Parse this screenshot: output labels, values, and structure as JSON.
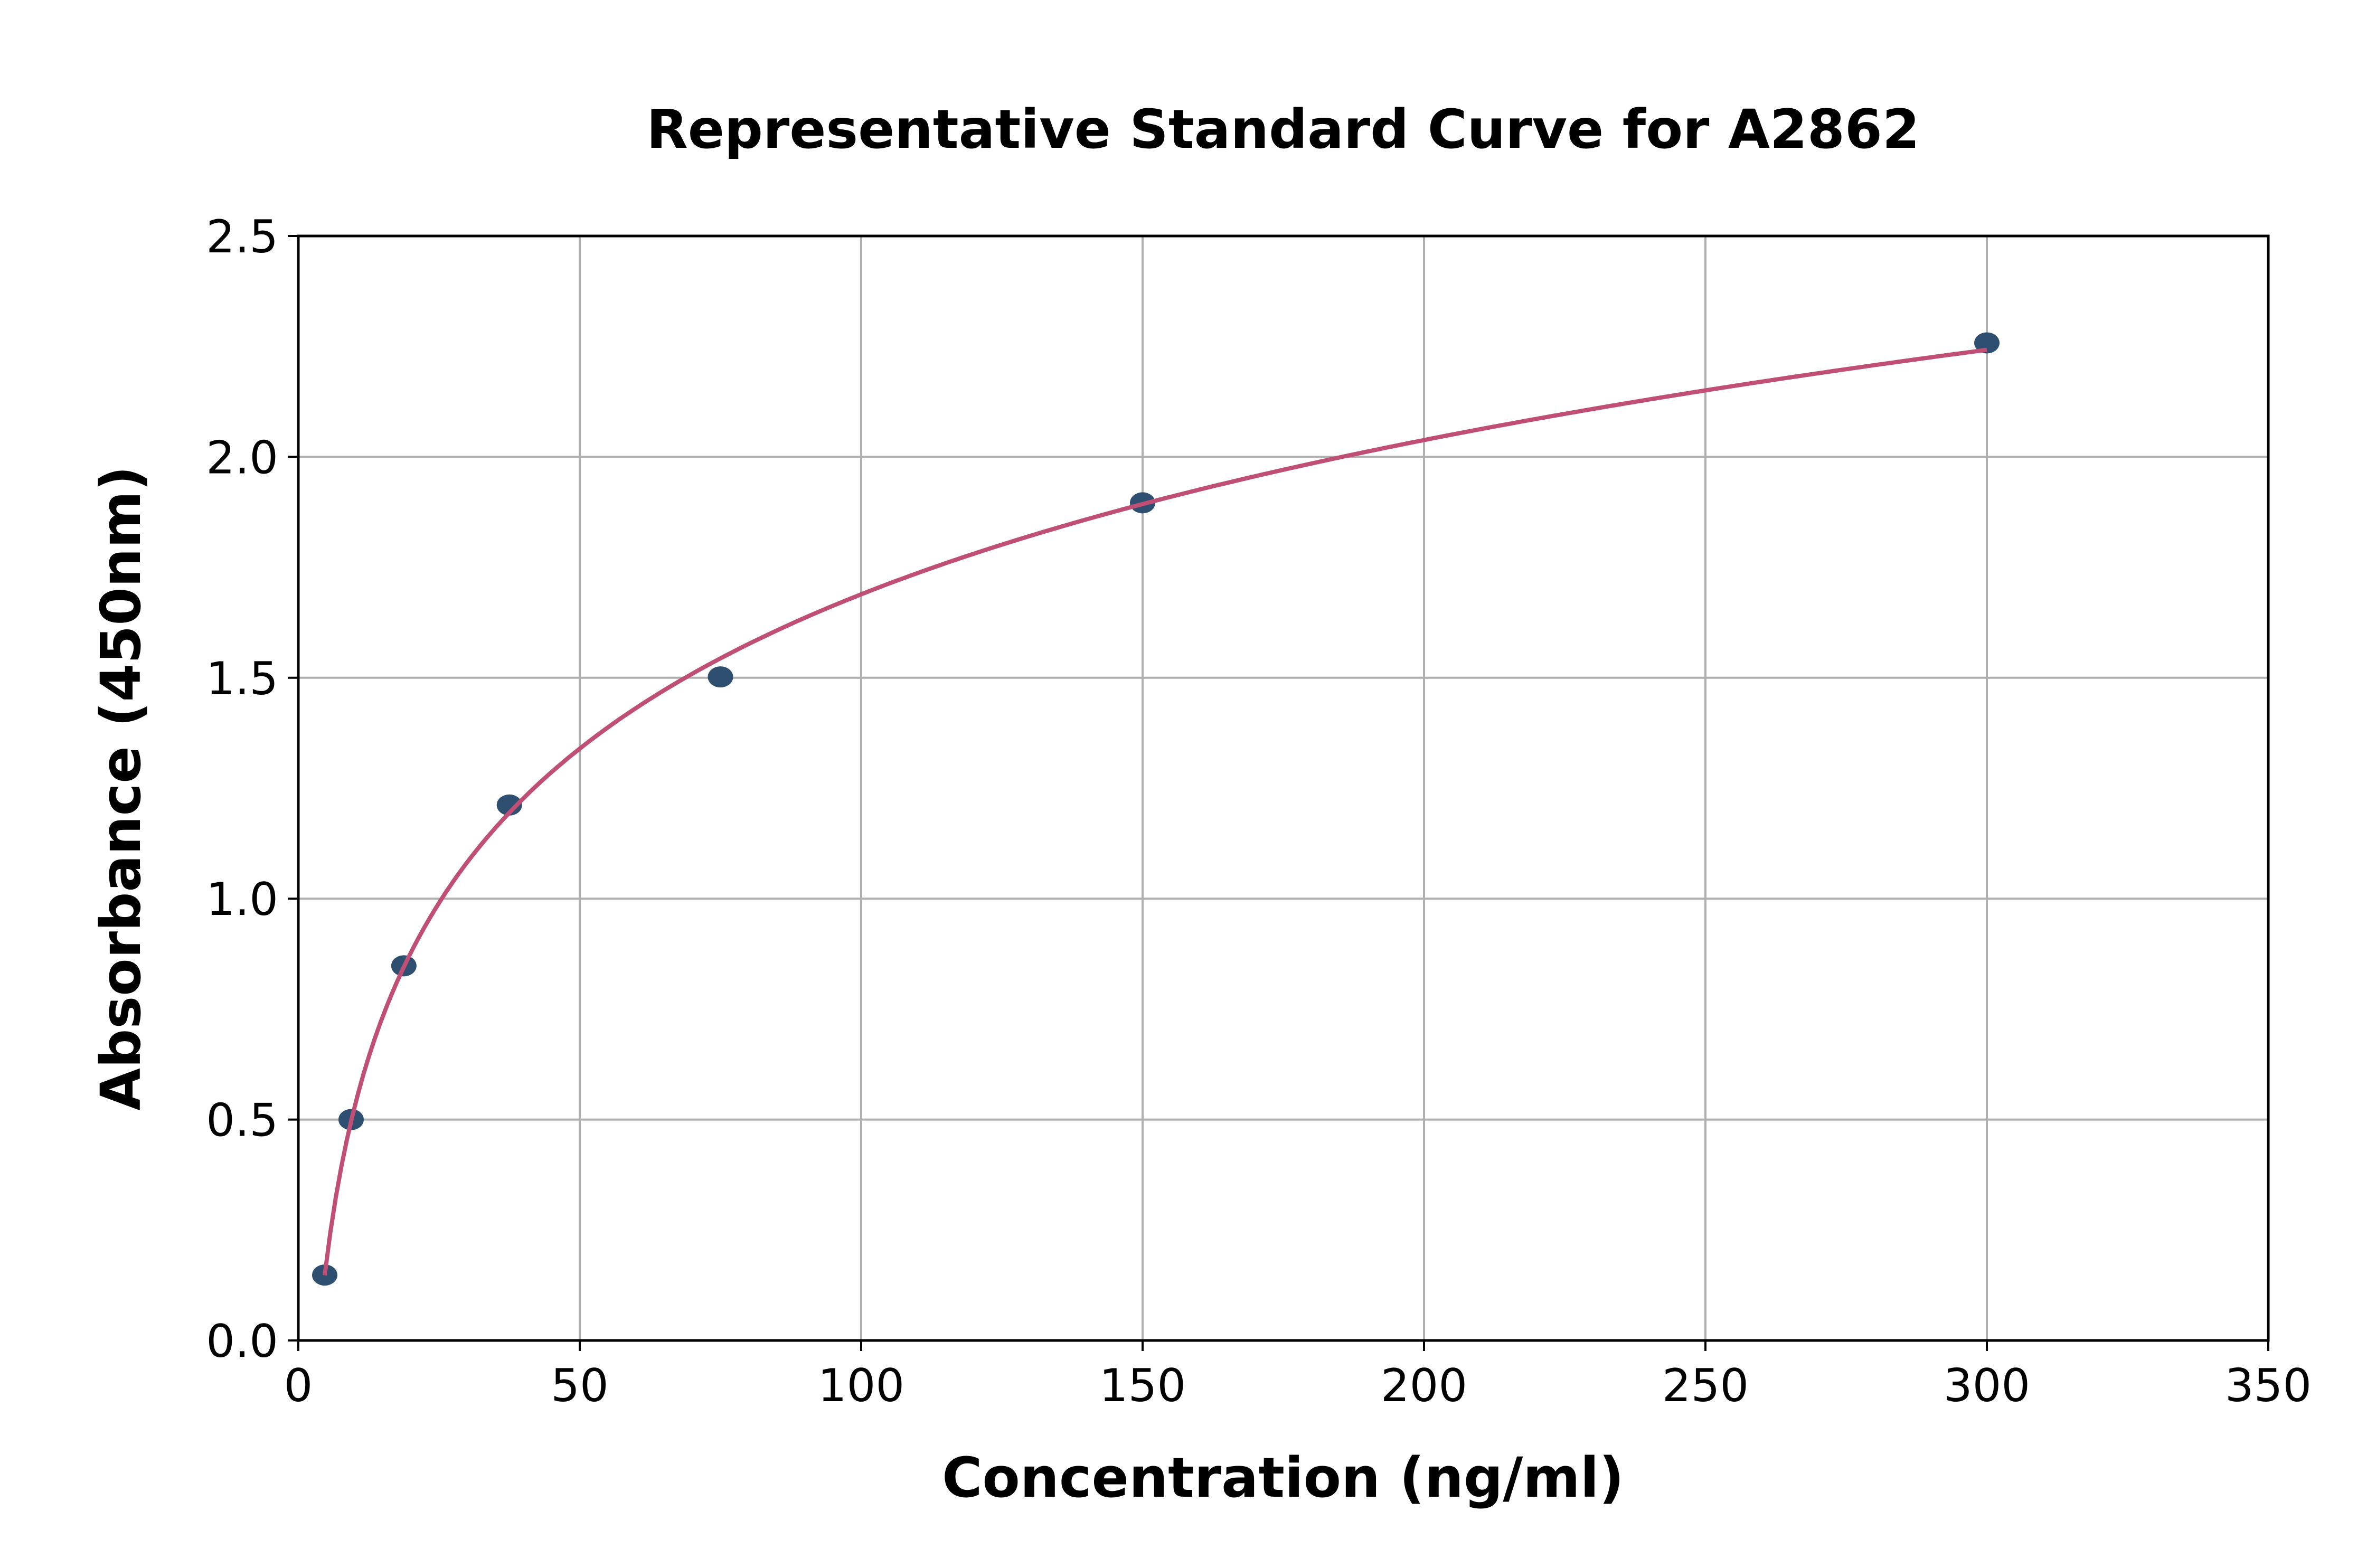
{
  "chart_data": {
    "type": "scatter",
    "title": "Representative Standard Curve for A2862",
    "xlabel": "Concentration (ng/ml)",
    "ylabel": "Absorbance (450nm)",
    "xlim": [
      0,
      350
    ],
    "ylim": [
      0,
      2.5
    ],
    "xticks": [
      "0",
      "50",
      "100",
      "150",
      "200",
      "250",
      "300",
      "350"
    ],
    "yticks": [
      "0.0",
      "0.5",
      "1.0",
      "1.5",
      "2.0",
      "2.5"
    ],
    "grid": true,
    "points": [
      {
        "x": 4.69,
        "y": 0.148
      },
      {
        "x": 9.38,
        "y": 0.5
      },
      {
        "x": 18.75,
        "y": 0.848
      },
      {
        "x": 37.5,
        "y": 1.212
      },
      {
        "x": 75,
        "y": 1.502
      },
      {
        "x": 150,
        "y": 1.896
      },
      {
        "x": 300,
        "y": 2.258
      }
    ],
    "fit": "logarithmic curve through points",
    "colors": {
      "points": "#2e4f70",
      "curve": "#c04f75",
      "grid": "#b0b0b0"
    }
  }
}
